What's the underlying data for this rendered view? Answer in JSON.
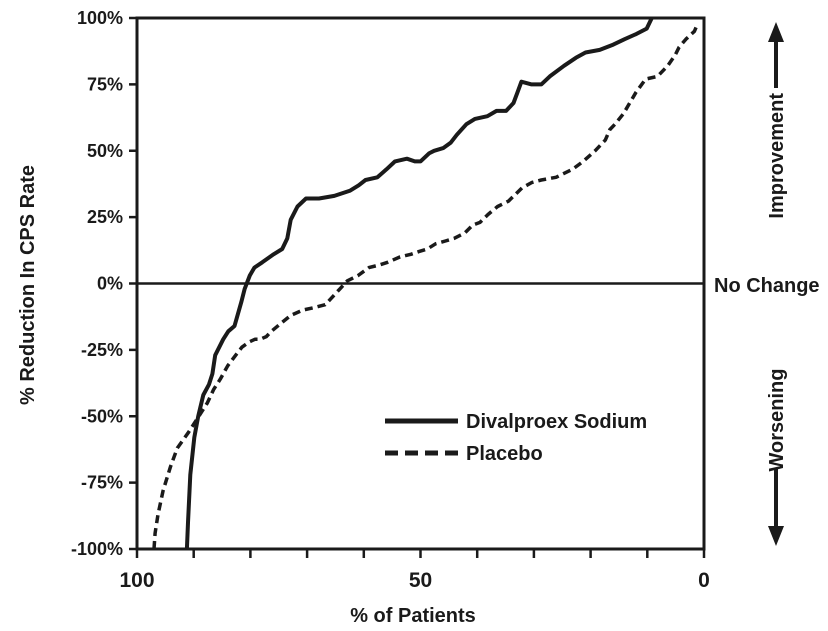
{
  "chart_data": {
    "type": "line",
    "xlabel": "% of Patients",
    "ylabel": "% Reduction In CPS Rate",
    "xlim": [
      100,
      0
    ],
    "ylim": [
      -100,
      100
    ],
    "x_reversed": true,
    "x_ticks": [
      {
        "value": 100,
        "label": "100"
      },
      {
        "value": 50,
        "label": "50"
      },
      {
        "value": 0,
        "label": "0"
      }
    ],
    "y_ticks": [
      {
        "value": 100,
        "label": "100%"
      },
      {
        "value": 75,
        "label": "75%"
      },
      {
        "value": 50,
        "label": "50%"
      },
      {
        "value": 25,
        "label": "25%"
      },
      {
        "value": 0,
        "label": "0%"
      },
      {
        "value": -25,
        "label": "-25%"
      },
      {
        "value": -50,
        "label": "-50%"
      },
      {
        "value": -75,
        "label": "-75%"
      },
      {
        "value": -100,
        "label": "-100%"
      }
    ],
    "reference_line": {
      "y": 0,
      "label": "No Change"
    },
    "side_annotations": {
      "top": "Improvement",
      "bottom": "Worsening"
    },
    "legend_position": "lower-right",
    "series": [
      {
        "name": "Divalproex Sodium",
        "style": "solid",
        "x": [
          91.2,
          91.0,
          90.6,
          89.9,
          89.2,
          88.3,
          87.3,
          86.7,
          86.2,
          84.8,
          83.9,
          82.8,
          81.6,
          81.0,
          80.1,
          79.3,
          77.9,
          75.9,
          74.4,
          73.5,
          72.9,
          71.7,
          70.2,
          67.9,
          65.2,
          62.4,
          60.9,
          59.7,
          57.6,
          56.0,
          54.5,
          52.4,
          51.0,
          50.0,
          48.5,
          47.6,
          46.0,
          44.7,
          43.6,
          41.9,
          40.4,
          38.2,
          36.6,
          34.9,
          33.6,
          32.9,
          32.2,
          30.4,
          28.7,
          27.2,
          24.7,
          22.6,
          20.9,
          18.4,
          16.0,
          14.0,
          11.9,
          10.1,
          9.2
        ],
        "y": [
          -100,
          -90,
          -72,
          -58,
          -50,
          -42,
          -38,
          -34,
          -27,
          -21,
          -18,
          -16,
          -7,
          -2,
          3,
          6,
          8,
          11,
          13,
          17,
          24,
          29,
          32,
          32,
          33,
          35,
          37,
          39,
          40,
          43,
          46,
          47,
          46,
          46,
          49,
          50,
          51,
          53,
          56,
          60,
          62,
          63,
          65,
          65,
          68,
          72,
          76,
          75,
          75,
          78,
          82,
          85,
          87,
          88,
          90,
          92,
          94,
          96,
          100
        ]
      },
      {
        "name": "Placebo",
        "style": "dashed",
        "x": [
          97.0,
          96.8,
          96.3,
          95.4,
          94.1,
          92.9,
          90.9,
          89.7,
          87.6,
          86.5,
          85.3,
          84.0,
          82.6,
          81.5,
          80.2,
          79.2,
          78.3,
          77.2,
          76.3,
          74.6,
          72.9,
          70.7,
          68.6,
          66.8,
          65.5,
          64.2,
          62.9,
          61.0,
          59.1,
          57.2,
          55.8,
          53.6,
          51.7,
          50.3,
          48.8,
          47.3,
          45.6,
          44.1,
          42.2,
          40.8,
          39.5,
          38.1,
          36.4,
          34.5,
          32.1,
          30.4,
          28.7,
          26.1,
          23.2,
          21.3,
          19.2,
          17.4,
          16.6,
          15.7,
          14.2,
          12.0,
          10.3,
          8.2,
          6.4,
          5.1,
          4.4,
          3.2,
          1.7,
          1.1
        ],
        "y": [
          -100,
          -94,
          -87,
          -78,
          -69,
          -62,
          -56,
          -52,
          -45,
          -40,
          -36,
          -31,
          -27,
          -24,
          -22,
          -21,
          -21,
          -20,
          -18,
          -15,
          -12,
          -10,
          -9,
          -8,
          -5,
          -2,
          1,
          3,
          6,
          7,
          8,
          10,
          11,
          12,
          13,
          15,
          16,
          17,
          19,
          22,
          23,
          26,
          29,
          31,
          36,
          38,
          39,
          40,
          43,
          46,
          50,
          54,
          58,
          60,
          64,
          72,
          77,
          78,
          82,
          86,
          89,
          92,
          95,
          98
        ]
      }
    ]
  },
  "colors": {
    "ink": "#1a1a1a",
    "background": "#ffffff"
  }
}
